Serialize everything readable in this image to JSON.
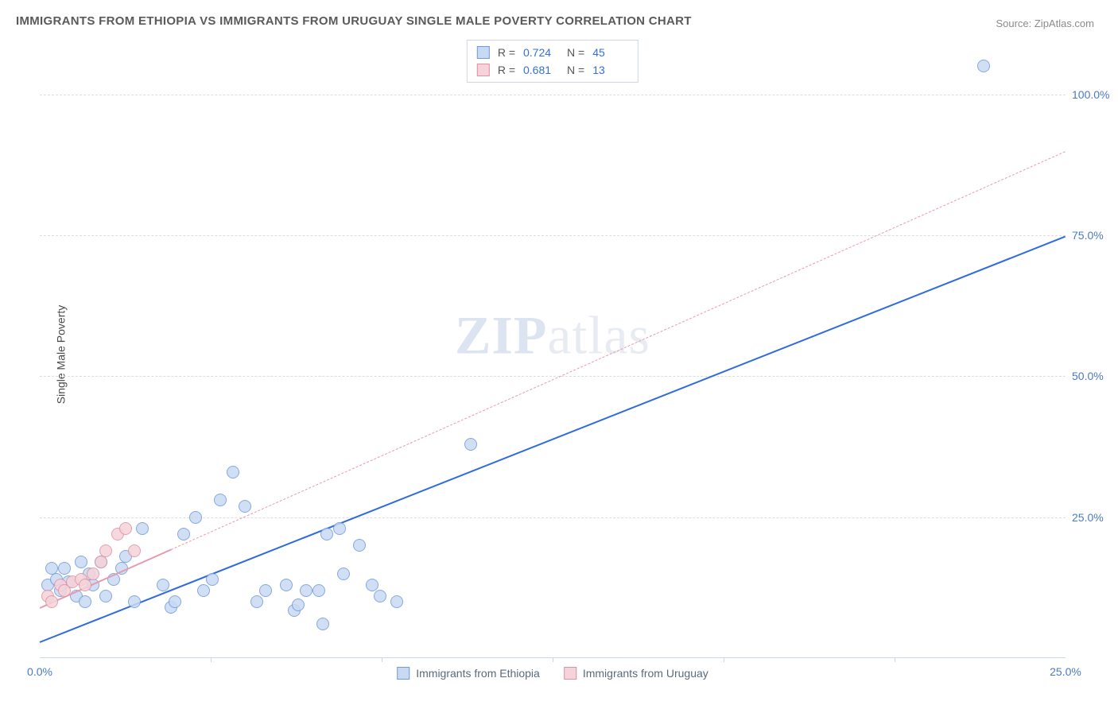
{
  "title": "IMMIGRANTS FROM ETHIOPIA VS IMMIGRANTS FROM URUGUAY SINGLE MALE POVERTY CORRELATION CHART",
  "source_prefix": "Source: ",
  "source": "ZipAtlas.com",
  "ylabel": "Single Male Poverty",
  "watermark_a": "ZIP",
  "watermark_b": "atlas",
  "chart": {
    "type": "scatter",
    "xlim": [
      0,
      25
    ],
    "ylim": [
      0,
      110
    ],
    "ytick_values": [
      25,
      50,
      75,
      100
    ],
    "ytick_labels": [
      "25.0%",
      "50.0%",
      "75.0%",
      "100.0%"
    ],
    "xtick_values": [
      0,
      25
    ],
    "xtick_labels": [
      "0.0%",
      "25.0%"
    ],
    "xminor_values": [
      4.167,
      8.333,
      12.5,
      16.667,
      20.833
    ],
    "background_color": "#ffffff",
    "grid_color": "#d8dee8",
    "axis_color": "#c9d5e8",
    "tick_label_color": "#4a78c8",
    "marker_radius": 8,
    "marker_stroke_width": 1.2,
    "series": [
      {
        "key": "ethiopia",
        "label": "Immigrants from Ethiopia",
        "fill": "#c8daf2",
        "stroke": "#6f9adf",
        "trend_color": "#2f6ade",
        "trend_dash": "solid",
        "trend_width": 2.5,
        "trend": {
          "x1": 0,
          "y1": 3,
          "x2": 25,
          "y2": 75
        },
        "R_label": "R =",
        "R": "0.724",
        "N_label": "N =",
        "N": "45",
        "points": [
          [
            0.2,
            13
          ],
          [
            0.3,
            16
          ],
          [
            0.4,
            14
          ],
          [
            0.5,
            12
          ],
          [
            0.6,
            16
          ],
          [
            0.7,
            13.5
          ],
          [
            0.9,
            11
          ],
          [
            1.0,
            17
          ],
          [
            1.1,
            10
          ],
          [
            1.2,
            15
          ],
          [
            1.3,
            13
          ],
          [
            1.5,
            17
          ],
          [
            1.6,
            11
          ],
          [
            1.8,
            14
          ],
          [
            2.0,
            16
          ],
          [
            2.1,
            18
          ],
          [
            2.3,
            10
          ],
          [
            2.5,
            23
          ],
          [
            3.0,
            13
          ],
          [
            3.2,
            9
          ],
          [
            3.3,
            10
          ],
          [
            3.5,
            22
          ],
          [
            3.8,
            25
          ],
          [
            4.0,
            12
          ],
          [
            4.2,
            14
          ],
          [
            4.4,
            28
          ],
          [
            4.7,
            33
          ],
          [
            5.0,
            27
          ],
          [
            5.3,
            10
          ],
          [
            5.5,
            12
          ],
          [
            6.0,
            13
          ],
          [
            6.2,
            8.5
          ],
          [
            6.3,
            9.5
          ],
          [
            6.5,
            12
          ],
          [
            6.8,
            12
          ],
          [
            6.9,
            6
          ],
          [
            7.0,
            22
          ],
          [
            7.3,
            23
          ],
          [
            7.4,
            15
          ],
          [
            7.8,
            20
          ],
          [
            8.1,
            13
          ],
          [
            8.3,
            11
          ],
          [
            8.7,
            10
          ],
          [
            10.5,
            38
          ],
          [
            23.0,
            105
          ]
        ]
      },
      {
        "key": "uruguay",
        "label": "Immigrants from Uruguay",
        "fill": "#f5d3da",
        "stroke": "#e090a0",
        "trend_color": "#e79aad",
        "trend_dash": "dashed",
        "trend_width": 1.5,
        "trend_solid_until_x": 3.2,
        "trend": {
          "x1": 0,
          "y1": 9,
          "x2": 25,
          "y2": 90
        },
        "R_label": "R =",
        "R": "0.681",
        "N_label": "N =",
        "N": "13",
        "points": [
          [
            0.2,
            11
          ],
          [
            0.3,
            10
          ],
          [
            0.5,
            13
          ],
          [
            0.6,
            12
          ],
          [
            0.8,
            13.5
          ],
          [
            1.0,
            14
          ],
          [
            1.1,
            13
          ],
          [
            1.3,
            15
          ],
          [
            1.5,
            17
          ],
          [
            1.6,
            19
          ],
          [
            1.9,
            22
          ],
          [
            2.1,
            23
          ],
          [
            2.3,
            19
          ]
        ]
      }
    ]
  }
}
